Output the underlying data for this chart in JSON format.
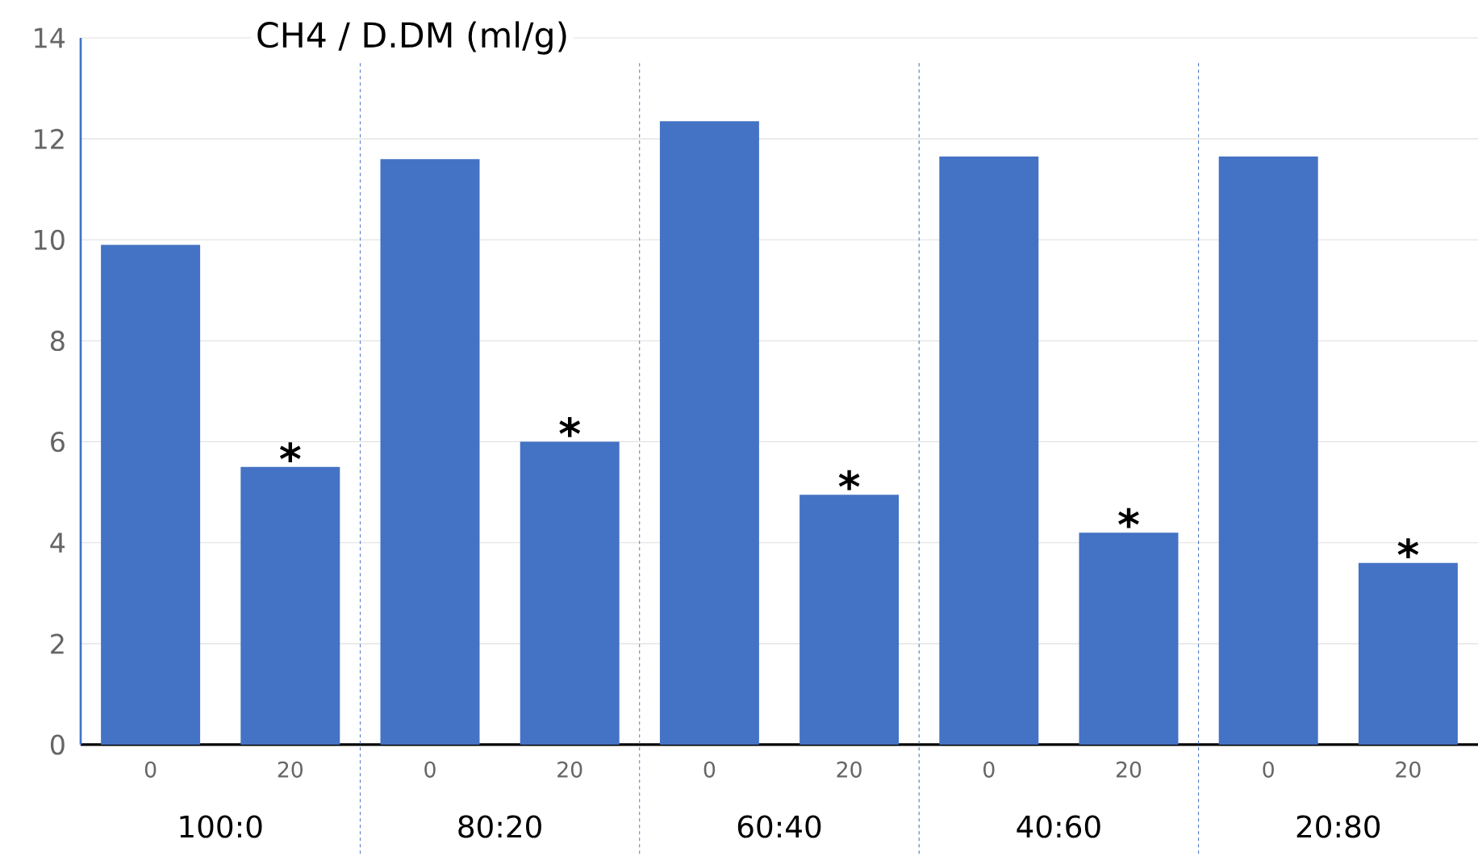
{
  "chart_data": {
    "type": "bar",
    "title": "CH4 / D.DM (ml/g)",
    "categories": [
      "0",
      "20",
      "0",
      "20",
      "0",
      "20",
      "0",
      "20",
      "0",
      "20"
    ],
    "values": [
      9.9,
      5.5,
      11.6,
      6.0,
      12.35,
      4.95,
      11.65,
      4.2,
      11.65,
      3.6
    ],
    "value_labels": [
      null,
      "*",
      null,
      "*",
      null,
      "*",
      null,
      "*",
      null,
      "*"
    ],
    "color": "#4472c4",
    "ylim": [
      0,
      14
    ],
    "yticks": [
      0,
      2,
      4,
      6,
      8,
      10,
      12,
      14
    ],
    "grid": "y",
    "annotations": [
      "100:0",
      "80:20",
      "60:40",
      "40:60",
      "20:80"
    ]
  }
}
